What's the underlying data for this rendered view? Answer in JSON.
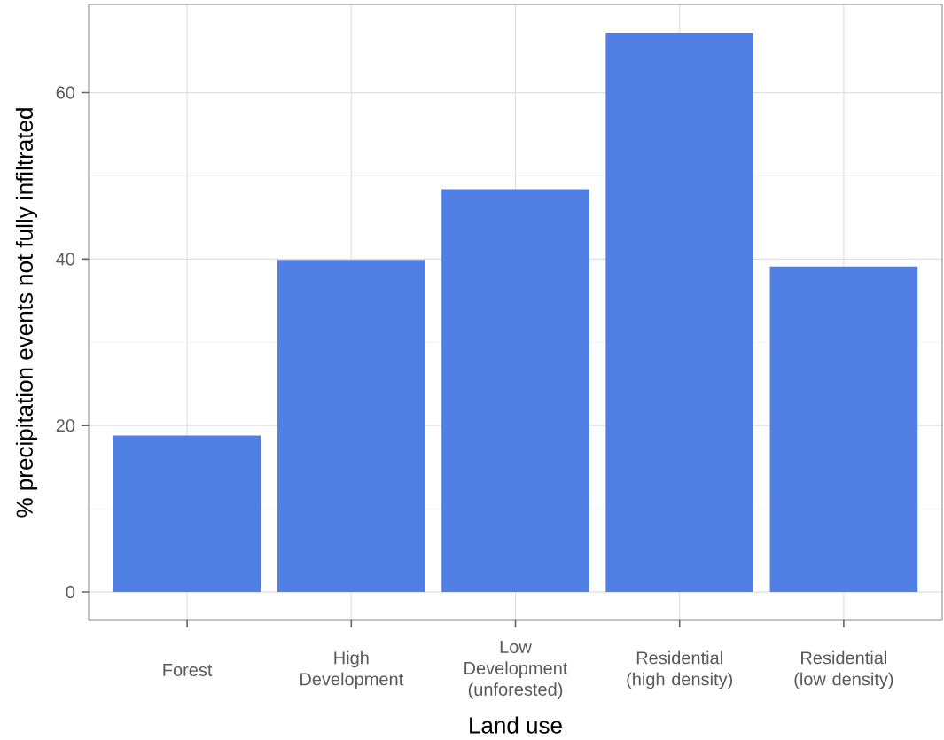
{
  "chart_data": {
    "type": "bar",
    "xlabel": "Land use",
    "ylabel": "% precipitation events not fully infiltrated",
    "categories": [
      "Forest",
      "High Development",
      "Low Development (unforested)",
      "Residential (high density)",
      "Residential (low density)"
    ],
    "values": [
      18.8,
      39.9,
      48.4,
      67.2,
      39.1
    ],
    "color": "#5180e4",
    "ylim": [
      -3.4,
      70.6
    ],
    "yticks": [
      0,
      20,
      40,
      60
    ],
    "grid": true
  }
}
